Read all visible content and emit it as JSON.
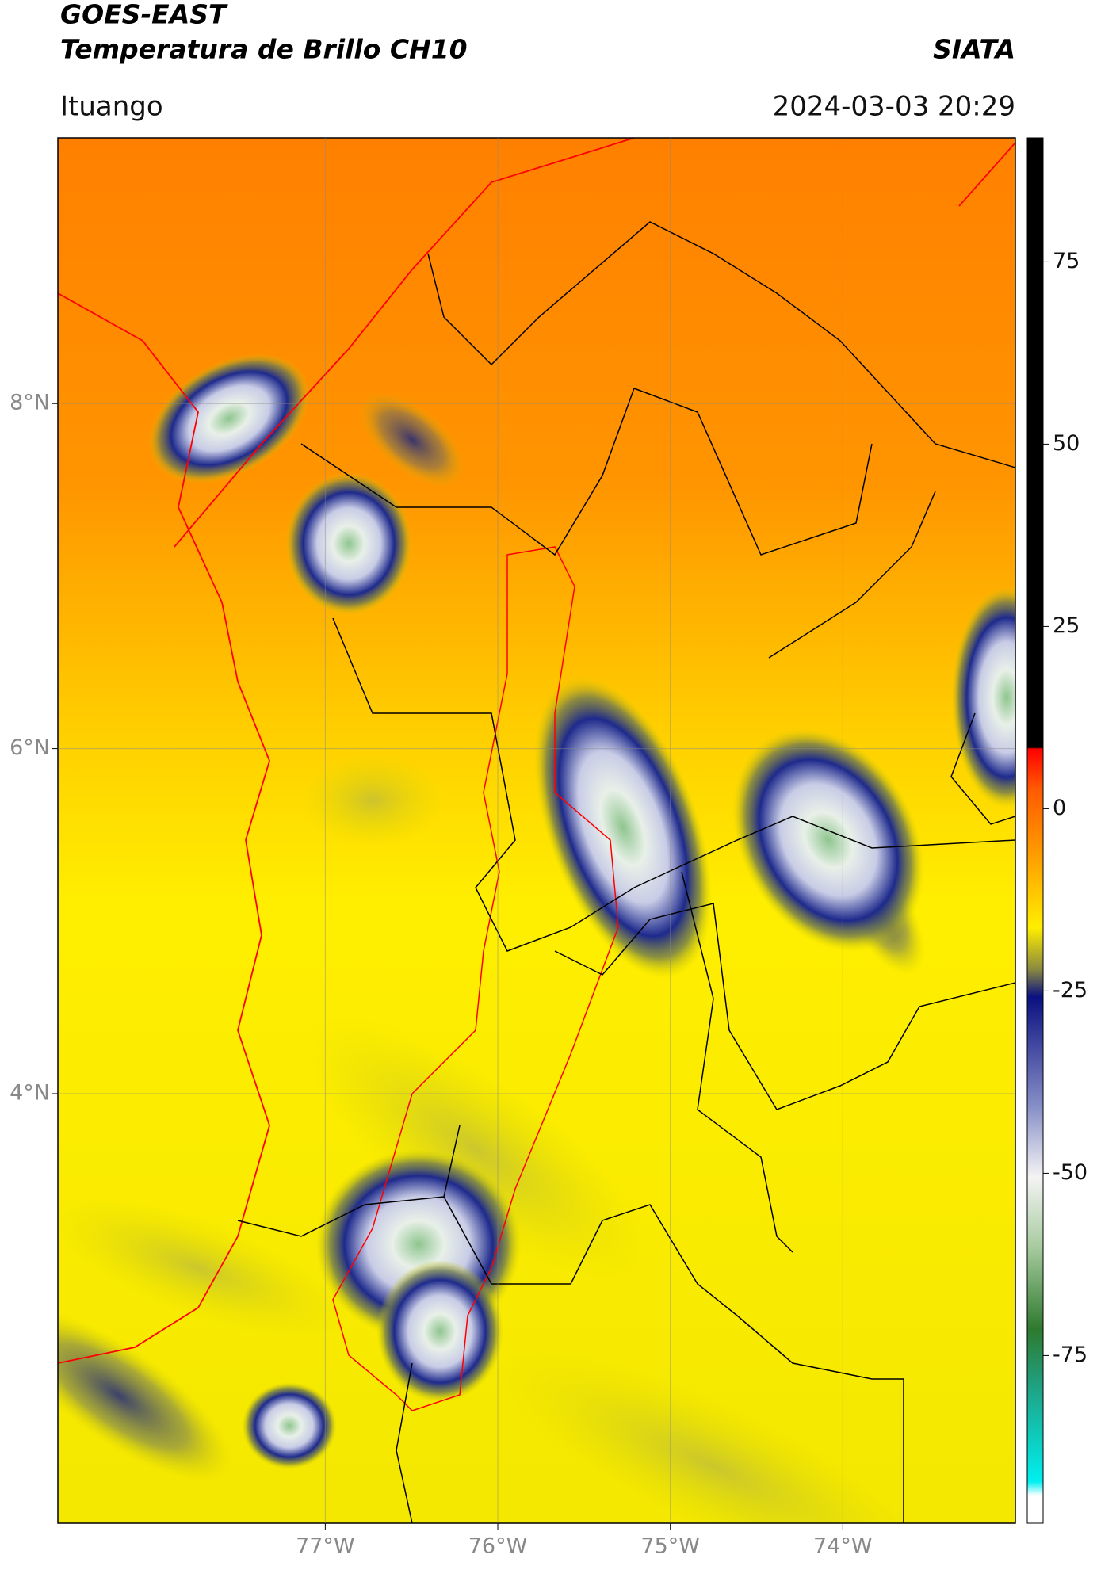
{
  "header": {
    "satellite": "GOES-EAST",
    "product": "Temperatura de Brillo CH10",
    "agency": "SIATA",
    "location": "Ituango",
    "timestamp": "2024-03-03 20:29"
  },
  "chart_data": {
    "type": "map",
    "xlim": [
      -78.55,
      -73.0
    ],
    "xticks": [
      {
        "value": -77,
        "label": "77°W"
      },
      {
        "value": -76,
        "label": "76°W"
      },
      {
        "value": -75,
        "label": "75°W"
      },
      {
        "value": -74,
        "label": "74°W"
      }
    ],
    "ylim": [
      1.51,
      9.54
    ],
    "yticks": [
      {
        "value": 8,
        "label": "8°N"
      },
      {
        "value": 6,
        "label": "6°N"
      },
      {
        "value": 4,
        "label": "4°N"
      }
    ],
    "grid": true,
    "colorbar": {
      "lim": [
        -98,
        92
      ],
      "ticks": [
        75,
        50,
        25,
        0,
        -25,
        -50,
        -75
      ]
    }
  }
}
